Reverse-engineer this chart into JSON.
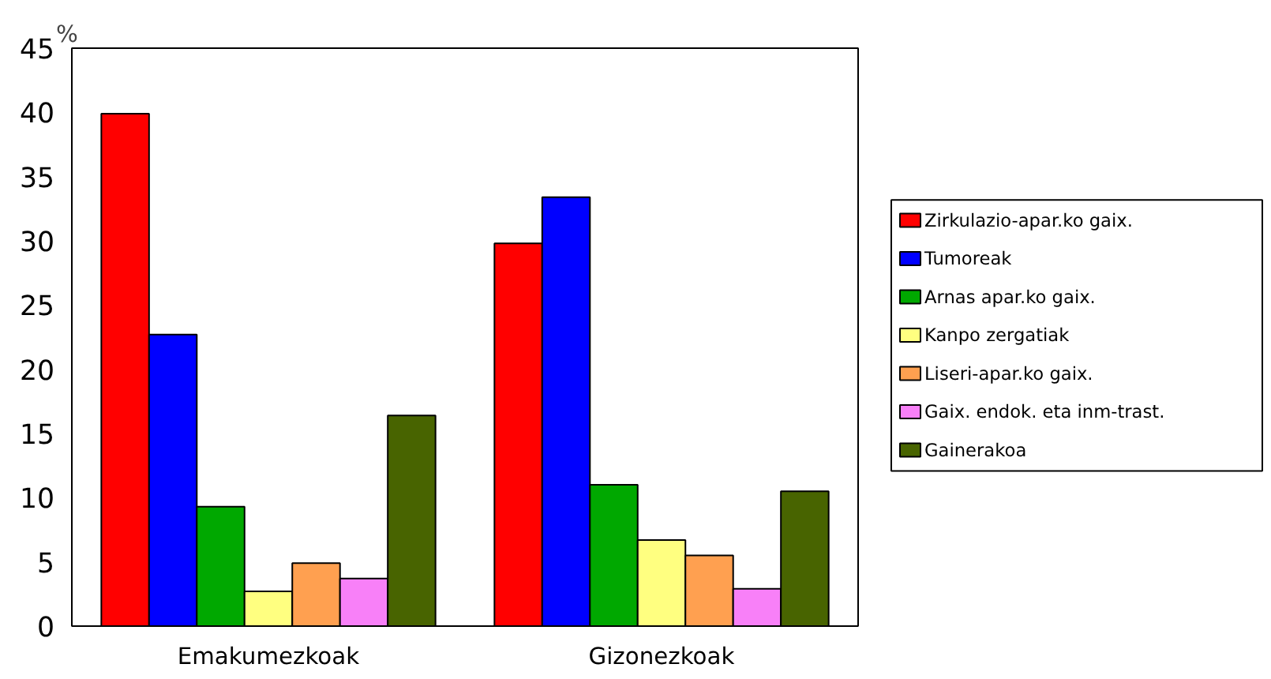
{
  "chart_data": {
    "type": "bar",
    "ylabel": "%",
    "categories": [
      "Emakumezkoak",
      "Gizonezkoak"
    ],
    "ylim": [
      0,
      45
    ],
    "yticks": [
      0,
      5,
      10,
      15,
      20,
      25,
      30,
      35,
      40,
      45
    ],
    "grid": false,
    "legend": "right",
    "series": [
      {
        "name": "Zirkulazio-apar.ko gaix.",
        "color": "#ff0000",
        "values": [
          39.9,
          29.8
        ]
      },
      {
        "name": "Tumoreak",
        "color": "#0000ff",
        "values": [
          22.7,
          33.4
        ]
      },
      {
        "name": "Arnas apar.ko gaix.",
        "color": "#00a800",
        "values": [
          9.3,
          11.0
        ]
      },
      {
        "name": "Kanpo zergatiak",
        "color": "#ffff80",
        "values": [
          2.7,
          6.7
        ]
      },
      {
        "name": "Liseri-apar.ko gaix.",
        "color": "#ffa050",
        "values": [
          4.9,
          5.5
        ]
      },
      {
        "name": "Gaix. endok. eta inm-trast.",
        "color": "#f880f8",
        "values": [
          3.7,
          2.9
        ]
      },
      {
        "name": "Gainerakoa",
        "color": "#486400",
        "values": [
          16.4,
          10.5
        ]
      }
    ]
  }
}
